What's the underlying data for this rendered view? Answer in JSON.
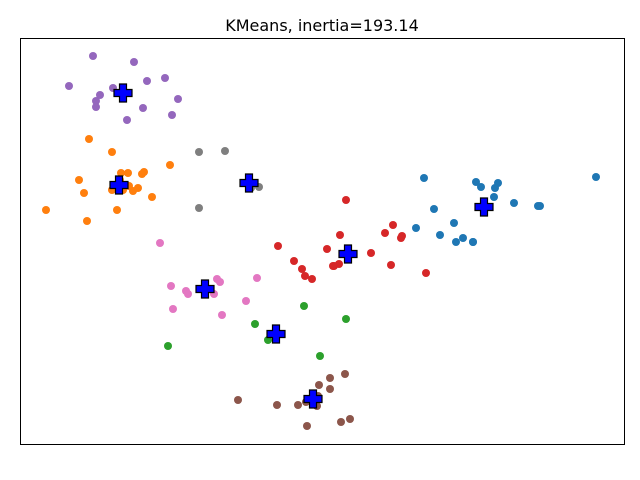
{
  "chart_data": {
    "type": "scatter",
    "title": "KMeans, inertia=193.14",
    "xlabel": "",
    "ylabel": "",
    "xlim": [
      0,
      605
    ],
    "ylim": [
      0,
      407
    ],
    "grid": false,
    "ticks": false,
    "series": [
      {
        "color": "#9467bd",
        "points": [
          [
            73,
            18
          ],
          [
            114,
            24
          ],
          [
            49,
            48
          ],
          [
            80,
            57
          ],
          [
            76,
            63
          ],
          [
            76,
            69
          ],
          [
            93,
            50
          ],
          [
            103,
            53
          ],
          [
            127,
            43
          ],
          [
            145,
            40
          ],
          [
            158,
            61
          ],
          [
            123,
            70
          ],
          [
            107,
            82
          ],
          [
            152,
            77
          ]
        ]
      },
      {
        "color": "#ff7f0e",
        "points": [
          [
            69,
            101
          ],
          [
            92,
            114
          ],
          [
            150,
            127
          ],
          [
            59,
            142
          ],
          [
            64,
            155
          ],
          [
            26,
            172
          ],
          [
            67,
            183
          ],
          [
            97,
            172
          ],
          [
            101,
            135
          ],
          [
            108,
            135
          ],
          [
            100,
            142
          ],
          [
            109,
            148
          ],
          [
            103,
            152
          ],
          [
            113,
            153
          ],
          [
            118,
            150
          ],
          [
            124,
            134
          ],
          [
            122,
            136
          ],
          [
            132,
            159
          ],
          [
            92,
            152
          ]
        ]
      },
      {
        "color": "#7f7f7f",
        "points": [
          [
            179,
            114
          ],
          [
            205,
            113
          ],
          [
            239,
            149
          ],
          [
            231,
            150
          ],
          [
            179,
            170
          ]
        ]
      },
      {
        "color": "#1f77b4",
        "points": [
          [
            404,
            140
          ],
          [
            456,
            144
          ],
          [
            461,
            149
          ],
          [
            478,
            145
          ],
          [
            475,
            150
          ],
          [
            576,
            139
          ],
          [
            474,
            159
          ],
          [
            494,
            165
          ],
          [
            518,
            168
          ],
          [
            520,
            168
          ],
          [
            414,
            171
          ],
          [
            434,
            185
          ],
          [
            396,
            190
          ],
          [
            420,
            197
          ],
          [
            443,
            200
          ],
          [
            453,
            204
          ],
          [
            436,
            204
          ],
          [
            453,
            204
          ]
        ]
      },
      {
        "color": "#d62728",
        "points": [
          [
            326,
            162
          ],
          [
            373,
            187
          ],
          [
            365,
            195
          ],
          [
            382,
            198
          ],
          [
            381,
            200
          ],
          [
            320,
            197
          ],
          [
            258,
            208
          ],
          [
            307,
            211
          ],
          [
            328,
            213
          ],
          [
            351,
            215
          ],
          [
            319,
            226
          ],
          [
            274,
            223
          ],
          [
            282,
            231
          ],
          [
            285,
            238
          ],
          [
            292,
            241
          ],
          [
            314,
            228
          ],
          [
            313,
            228
          ],
          [
            371,
            227
          ],
          [
            406,
            235
          ]
        ]
      },
      {
        "color": "#e377c2",
        "points": [
          [
            140,
            205
          ],
          [
            237,
            240
          ],
          [
            197,
            241
          ],
          [
            200,
            244
          ],
          [
            151,
            248
          ],
          [
            166,
            253
          ],
          [
            168,
            256
          ],
          [
            194,
            256
          ],
          [
            226,
            263
          ],
          [
            153,
            271
          ],
          [
            202,
            277
          ]
        ]
      },
      {
        "color": "#2ca02c",
        "points": [
          [
            284,
            268
          ],
          [
            326,
            281
          ],
          [
            235,
            286
          ],
          [
            248,
            302
          ],
          [
            148,
            308
          ],
          [
            300,
            318
          ]
        ]
      },
      {
        "color": "#8c564b",
        "points": [
          [
            325,
            336
          ],
          [
            310,
            340
          ],
          [
            299,
            347
          ],
          [
            310,
            351
          ],
          [
            218,
            362
          ],
          [
            298,
            358
          ],
          [
            286,
            364
          ],
          [
            278,
            367
          ],
          [
            257,
            367
          ],
          [
            297,
            368
          ],
          [
            330,
            381
          ],
          [
            321,
            384
          ],
          [
            287,
            388
          ]
        ]
      }
    ],
    "centroids": {
      "color": "#0000ff",
      "points": [
        [
          103,
          55
        ],
        [
          99,
          147
        ],
        [
          229,
          145
        ],
        [
          464,
          169
        ],
        [
          328,
          216
        ],
        [
          185,
          251
        ],
        [
          256,
          296
        ],
        [
          293,
          361
        ]
      ]
    }
  }
}
